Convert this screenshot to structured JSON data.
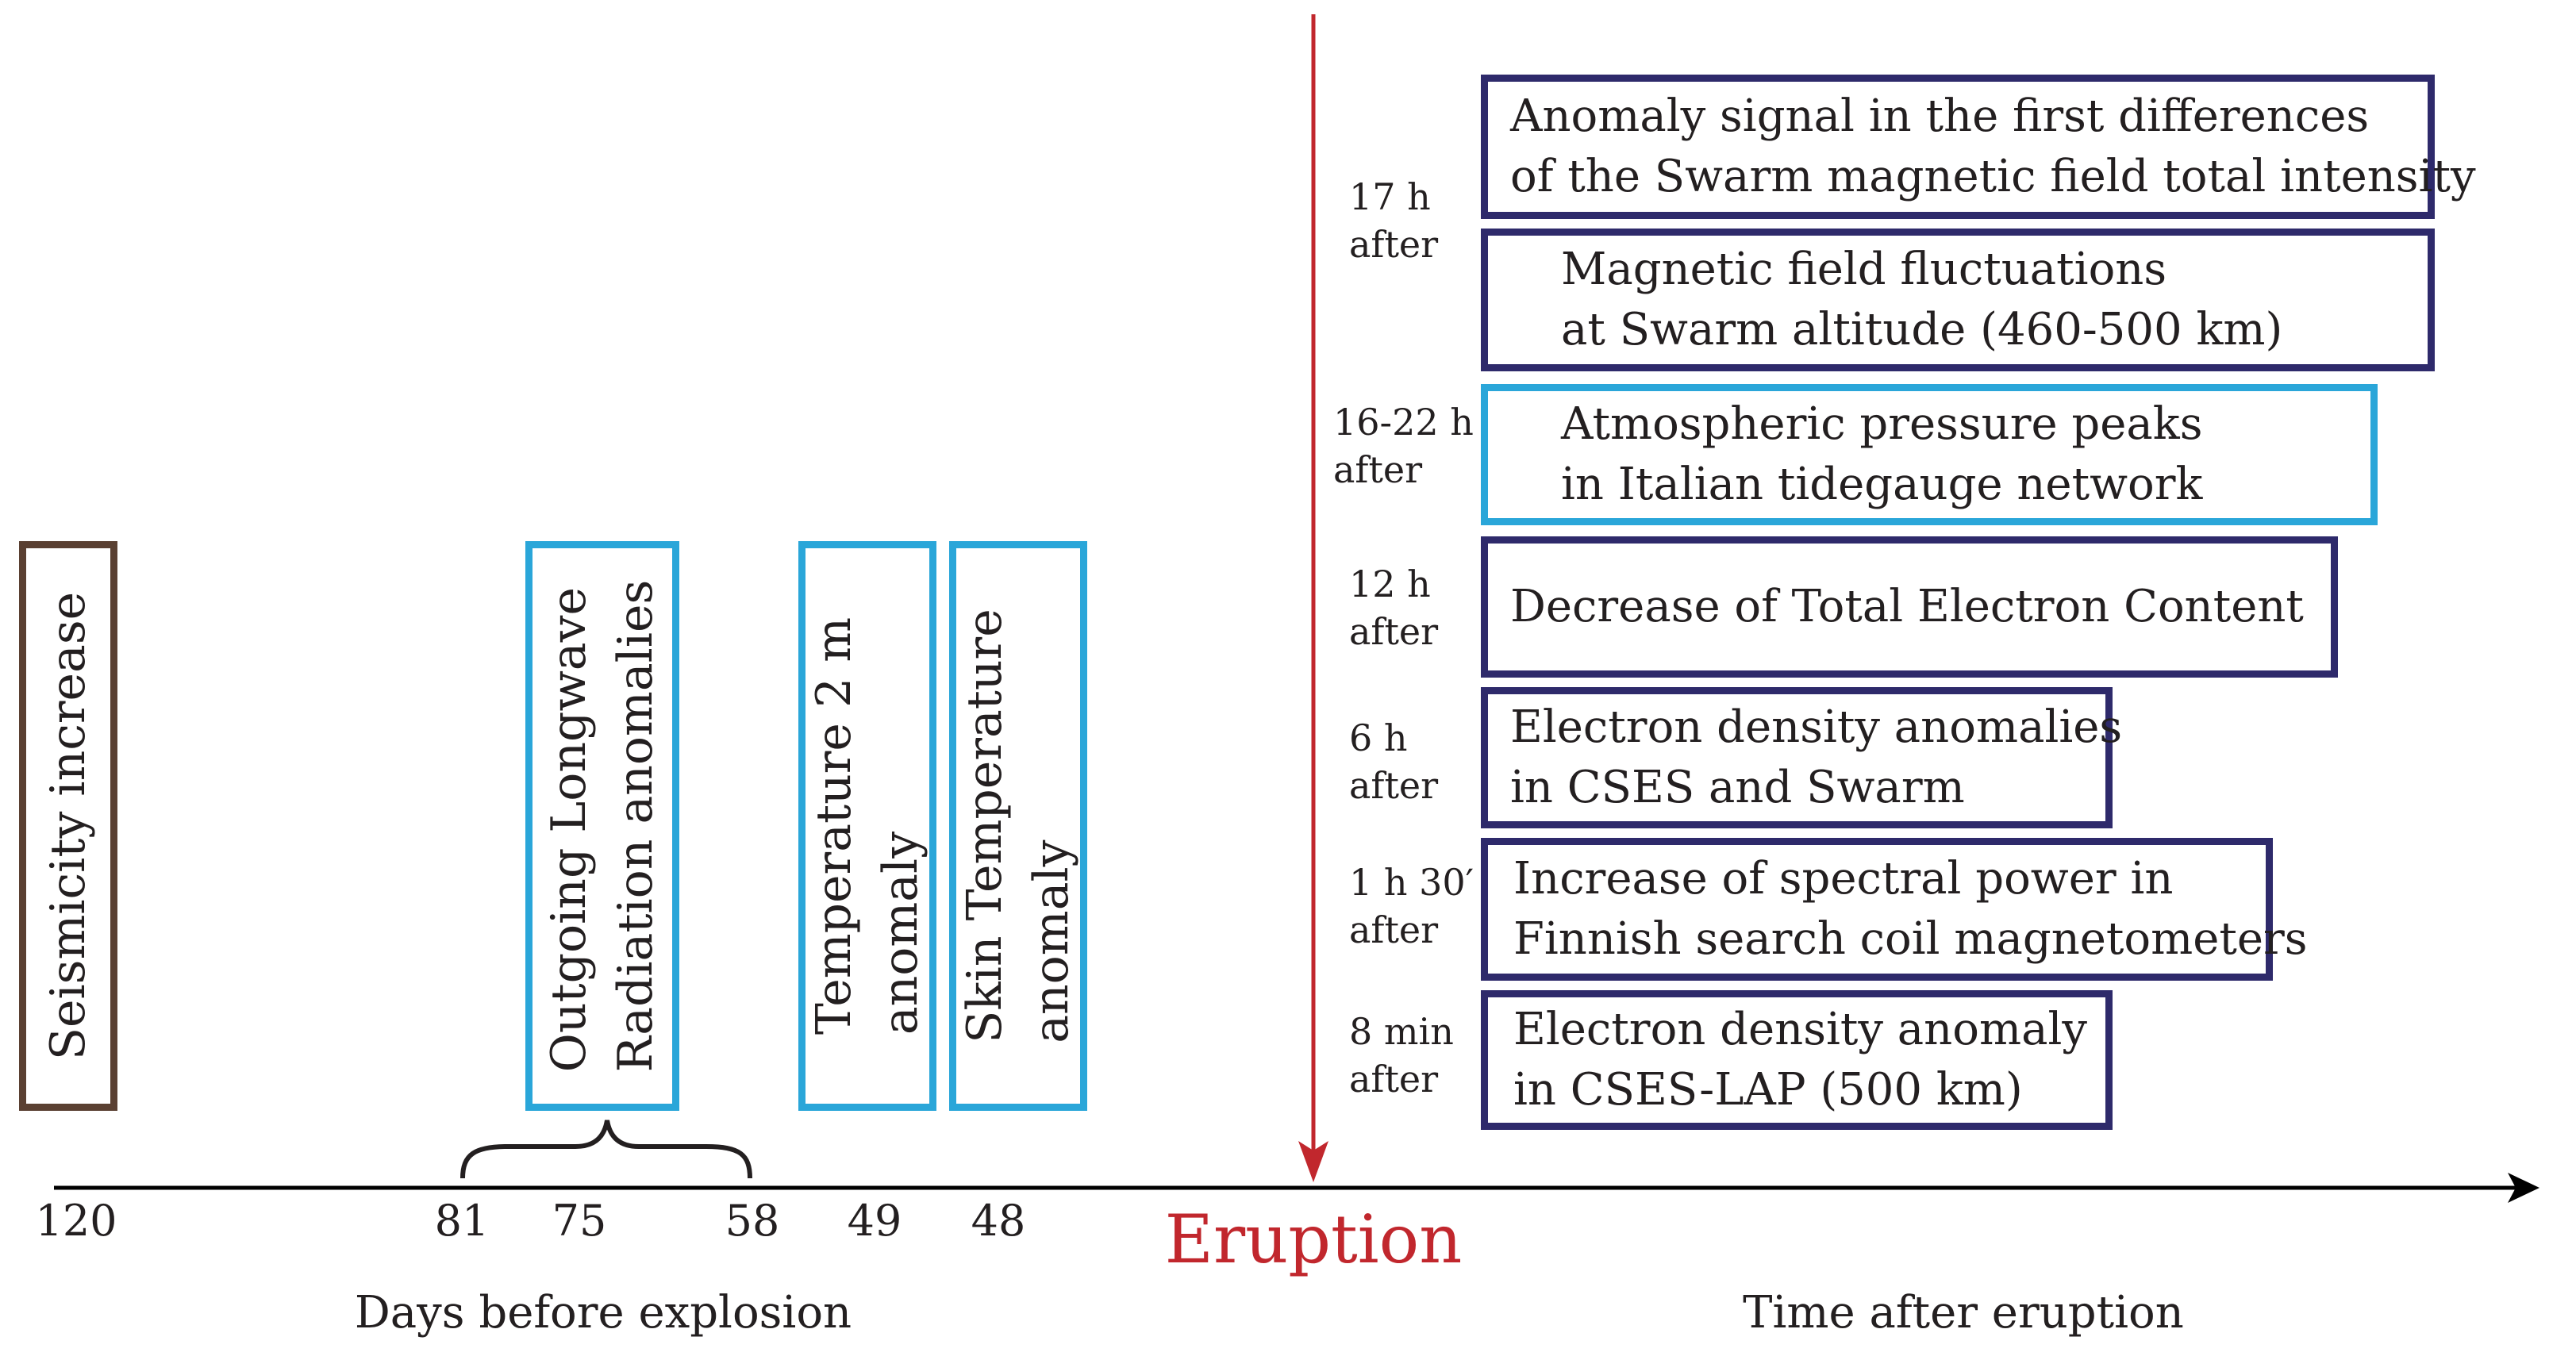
{
  "colors": {
    "axis": "#000000",
    "eruption_line": "#c1272d",
    "box_dark": "#2e2a6b",
    "box_light": "#2aa6d9",
    "box_brown": "#5a4032",
    "text": "#231f20"
  },
  "before": {
    "boxes": [
      {
        "lines": [
          "Seismicity increase"
        ]
      },
      {
        "lines": [
          "Outgoing Longwave",
          "Radiation anomalies"
        ]
      },
      {
        "lines": [
          "Temperature 2 m",
          "anomaly"
        ]
      },
      {
        "lines": [
          "Skin Temperature",
          "anomaly"
        ]
      }
    ],
    "ticks": [
      "120",
      "81",
      "75",
      "58",
      "49",
      "48"
    ],
    "axis_title": "Days before explosion"
  },
  "eruption": {
    "label": "Eruption"
  },
  "after": {
    "events": [
      {
        "time": [
          "17 h",
          "after"
        ],
        "lines": [
          "Anomaly signal in the first differences",
          "of the Swarm magnetic field total intensity"
        ]
      },
      {
        "time": [],
        "lines": [
          "Magnetic field fluctuations",
          "at Swarm altitude (460-500 km)"
        ]
      },
      {
        "time": [
          "16-22 h",
          "after"
        ],
        "lines": [
          "Atmospheric pressure peaks",
          "in Italian tidegauge network"
        ]
      },
      {
        "time": [
          "12 h",
          "after"
        ],
        "lines": [
          "Decrease of Total Electron Content"
        ]
      },
      {
        "time": [
          "6 h",
          "after"
        ],
        "lines": [
          "Electron density anomalies",
          "in CSES and Swarm"
        ]
      },
      {
        "time": [
          "1 h 30′",
          "after"
        ],
        "lines": [
          "Increase of spectral power in",
          "Finnish search coil magnetometers"
        ]
      },
      {
        "time": [
          "8 min",
          "after"
        ],
        "lines": [
          "Electron density anomaly",
          "in CSES-LAP (500 km)"
        ]
      }
    ],
    "axis_title": "Time after eruption"
  }
}
